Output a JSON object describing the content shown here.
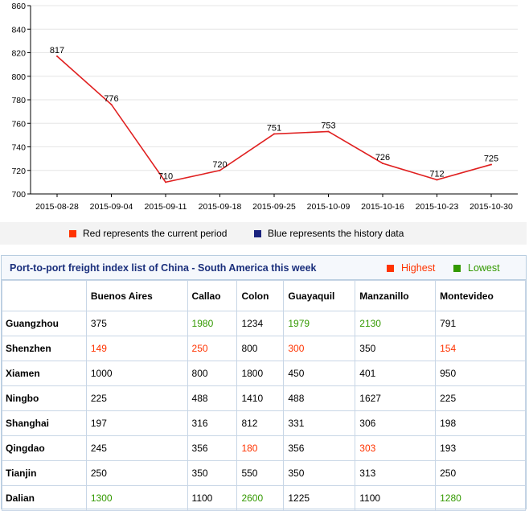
{
  "chart_data": {
    "type": "line",
    "categories": [
      "2015-08-28",
      "2015-09-04",
      "2015-09-11",
      "2015-09-18",
      "2015-09-25",
      "2015-10-09",
      "2015-10-16",
      "2015-10-23",
      "2015-10-30"
    ],
    "series": [
      {
        "values": [
          817,
          776,
          710,
          720,
          751,
          753,
          726,
          712,
          725
        ],
        "color": "#e02020"
      }
    ],
    "title": "",
    "xlabel": "",
    "ylabel": "",
    "ylim": [
      700,
      860
    ],
    "yticks": [
      700,
      720,
      740,
      760,
      780,
      800,
      820,
      840,
      860
    ],
    "grid": true
  },
  "legend": {
    "current": {
      "label": "Red represents the current period",
      "color": "#ff3300"
    },
    "history": {
      "label": "Blue represents the history data",
      "color": "#1a237e"
    }
  },
  "table": {
    "title": "Port-to-port freight index list of China - South America this week",
    "highest": {
      "label": "Highest",
      "color": "#ff3300"
    },
    "lowest": {
      "label": "Lowest",
      "color": "#339900"
    },
    "columns": [
      "",
      "Buenos Aires",
      "Callao",
      "Colon",
      "Guayaquil",
      "Manzanillo",
      "Montevideo"
    ],
    "rows": [
      {
        "port": "Guangzhou",
        "cells": [
          {
            "v": "375",
            "s": ""
          },
          {
            "v": "1980",
            "s": "low"
          },
          {
            "v": "1234",
            "s": ""
          },
          {
            "v": "1979",
            "s": "low"
          },
          {
            "v": "2130",
            "s": "low"
          },
          {
            "v": "791",
            "s": ""
          }
        ]
      },
      {
        "port": "Shenzhen",
        "cells": [
          {
            "v": "149",
            "s": "high"
          },
          {
            "v": "250",
            "s": "high"
          },
          {
            "v": "800",
            "s": ""
          },
          {
            "v": "300",
            "s": "high"
          },
          {
            "v": "350",
            "s": ""
          },
          {
            "v": "154",
            "s": "high"
          }
        ]
      },
      {
        "port": "Xiamen",
        "cells": [
          {
            "v": "1000",
            "s": ""
          },
          {
            "v": "800",
            "s": ""
          },
          {
            "v": "1800",
            "s": ""
          },
          {
            "v": "450",
            "s": ""
          },
          {
            "v": "401",
            "s": ""
          },
          {
            "v": "950",
            "s": ""
          }
        ]
      },
      {
        "port": "Ningbo",
        "cells": [
          {
            "v": "225",
            "s": ""
          },
          {
            "v": "488",
            "s": ""
          },
          {
            "v": "1410",
            "s": ""
          },
          {
            "v": "488",
            "s": ""
          },
          {
            "v": "1627",
            "s": ""
          },
          {
            "v": "225",
            "s": ""
          }
        ]
      },
      {
        "port": "Shanghai",
        "cells": [
          {
            "v": "197",
            "s": ""
          },
          {
            "v": "316",
            "s": ""
          },
          {
            "v": "812",
            "s": ""
          },
          {
            "v": "331",
            "s": ""
          },
          {
            "v": "306",
            "s": ""
          },
          {
            "v": "198",
            "s": ""
          }
        ]
      },
      {
        "port": "Qingdao",
        "cells": [
          {
            "v": "245",
            "s": ""
          },
          {
            "v": "356",
            "s": ""
          },
          {
            "v": "180",
            "s": "high"
          },
          {
            "v": "356",
            "s": ""
          },
          {
            "v": "303",
            "s": "high"
          },
          {
            "v": "193",
            "s": ""
          }
        ]
      },
      {
        "port": "Tianjin",
        "cells": [
          {
            "v": "250",
            "s": ""
          },
          {
            "v": "350",
            "s": ""
          },
          {
            "v": "550",
            "s": ""
          },
          {
            "v": "350",
            "s": ""
          },
          {
            "v": "313",
            "s": ""
          },
          {
            "v": "250",
            "s": ""
          }
        ]
      },
      {
        "port": "Dalian",
        "cells": [
          {
            "v": "1300",
            "s": "low"
          },
          {
            "v": "1100",
            "s": ""
          },
          {
            "v": "2600",
            "s": "low"
          },
          {
            "v": "1225",
            "s": ""
          },
          {
            "v": "1100",
            "s": ""
          },
          {
            "v": "1280",
            "s": "low"
          }
        ]
      }
    ]
  }
}
